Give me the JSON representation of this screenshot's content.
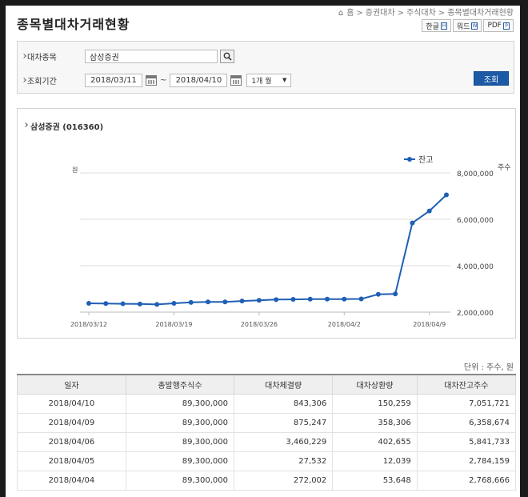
{
  "header": {
    "page_title": "종목별대차거래현황",
    "breadcrumb": [
      "홈",
      "증권대차",
      "주식대차",
      "종목별대차거래현황"
    ]
  },
  "export": {
    "hwp": "한글",
    "word": "워드",
    "pdf": "PDF"
  },
  "search": {
    "stock_label": "대차종목",
    "stock_value": "삼성증권",
    "period_label": "조회기간",
    "date_from": "2018/03/11",
    "date_to": "2018/04/10",
    "date_sep": "~",
    "period_select": "1개 월",
    "query_button": "조회"
  },
  "chart_heading": "삼성증권 (016360)",
  "chart_data": {
    "type": "line",
    "title": "",
    "legend": {
      "label": "잔고",
      "position": "top-right"
    },
    "left_axis_label": "원",
    "right_axis_label": "주수",
    "ylim": [
      2000000,
      8000000
    ],
    "y_ticks": [
      "2,000,000",
      "4,000,000",
      "6,000,000",
      "8,000,000"
    ],
    "y_tick_values": [
      2000000,
      4000000,
      6000000,
      8000000
    ],
    "x_ticks": [
      "2018/03/12",
      "2018/03/19",
      "2018/03/26",
      "2018/04/2",
      "2018/04/9"
    ],
    "color": "#1f5fb5",
    "series": [
      {
        "name": "잔고",
        "x": [
          "2018/03/12",
          "2018/03/13",
          "2018/03/14",
          "2018/03/15",
          "2018/03/16",
          "2018/03/19",
          "2018/03/20",
          "2018/03/21",
          "2018/03/22",
          "2018/03/23",
          "2018/03/26",
          "2018/03/27",
          "2018/03/28",
          "2018/03/29",
          "2018/03/30",
          "2018/04/02",
          "2018/04/03",
          "2018/04/04",
          "2018/04/05",
          "2018/04/06",
          "2018/04/09",
          "2018/04/10"
        ],
        "values": [
          2380000,
          2370000,
          2360000,
          2350000,
          2330000,
          2380000,
          2420000,
          2440000,
          2440000,
          2480000,
          2510000,
          2540000,
          2550000,
          2560000,
          2560000,
          2560000,
          2570000,
          2768666,
          2784159,
          5841733,
          6358674,
          7051721
        ]
      }
    ]
  },
  "unit_note": "단위 : 주수, 원",
  "table": {
    "columns": [
      "일자",
      "총발행주식수",
      "대차체결량",
      "대차상환량",
      "대차잔고주수"
    ],
    "rows": [
      [
        "2018/04/10",
        "89,300,000",
        "843,306",
        "150,259",
        "7,051,721"
      ],
      [
        "2018/04/09",
        "89,300,000",
        "875,247",
        "358,306",
        "6,358,674"
      ],
      [
        "2018/04/06",
        "89,300,000",
        "3,460,229",
        "402,655",
        "5,841,733"
      ],
      [
        "2018/04/05",
        "89,300,000",
        "27,532",
        "12,039",
        "2,784,159"
      ],
      [
        "2018/04/04",
        "89,300,000",
        "272,002",
        "53,648",
        "2,768,666"
      ]
    ]
  }
}
